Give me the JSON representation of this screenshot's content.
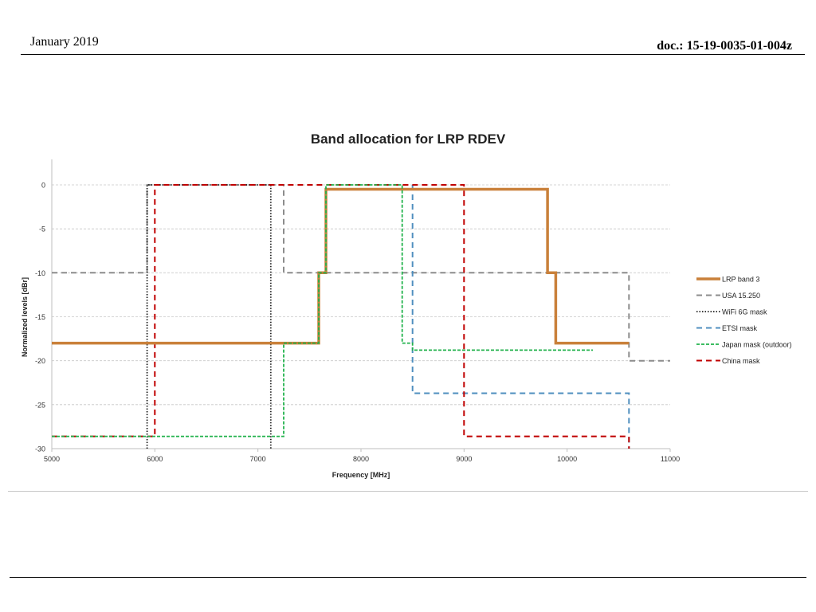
{
  "header": {
    "date": "January 2019",
    "doc": "doc.: 15-19-0035-01-004z"
  },
  "chart_data": {
    "type": "line",
    "title": "Band allocation for LRP RDEV",
    "xlabel": "Frequency [MHz]",
    "ylabel": "Normalized levels [dBr]",
    "xlim": [
      5000,
      11000
    ],
    "ylim": [
      -30,
      0
    ],
    "xticks": [
      5000,
      6000,
      7000,
      8000,
      9000,
      10000,
      11000
    ],
    "yticks": [
      0,
      -5,
      -10,
      -15,
      -20,
      -25,
      -30
    ],
    "grid": true,
    "legend_position": "right",
    "series": [
      {
        "name": "LRP band 3",
        "color": "#c9803a",
        "dash": "solid",
        "points": [
          [
            5000,
            -18
          ],
          [
            7590,
            -18
          ],
          [
            7590,
            -10
          ],
          [
            7660,
            -10
          ],
          [
            7660,
            -0.5
          ],
          [
            9810,
            -0.5
          ],
          [
            9810,
            -10
          ],
          [
            9890,
            -10
          ],
          [
            9890,
            -18
          ],
          [
            10600,
            -18
          ]
        ]
      },
      {
        "name": "USA 15.250",
        "color": "#8c8c8c",
        "dash": "long",
        "points": [
          [
            5000,
            -10
          ],
          [
            5925,
            -10
          ],
          [
            5925,
            0
          ],
          [
            7250,
            0
          ],
          [
            7250,
            -10
          ],
          [
            10600,
            -10
          ],
          [
            10600,
            -20
          ],
          [
            11000,
            -20
          ]
        ]
      },
      {
        "name": "WiFi 6G mask",
        "color": "#222222",
        "dash": "dot",
        "points": [
          [
            5925,
            -30
          ],
          [
            5925,
            0
          ],
          [
            7125,
            0
          ],
          [
            7125,
            -30
          ]
        ]
      },
      {
        "name": "ETSI mask",
        "color": "#4f8fbf",
        "dash": "long",
        "points": [
          [
            8500,
            0
          ],
          [
            8500,
            -23.7
          ],
          [
            10600,
            -23.7
          ],
          [
            10600,
            -30
          ]
        ]
      },
      {
        "name": "Japan mask (outdoor)",
        "color": "#22b24c",
        "dash": "short",
        "points": [
          [
            5000,
            -28.6
          ],
          [
            7250,
            -28.6
          ],
          [
            7250,
            -18
          ],
          [
            7590,
            -18
          ],
          [
            7590,
            -10
          ],
          [
            7660,
            -10
          ],
          [
            7660,
            0
          ],
          [
            8400,
            0
          ],
          [
            8400,
            -18
          ],
          [
            8500,
            -18
          ],
          [
            8500,
            -18.8
          ],
          [
            10250,
            -18.8
          ]
        ]
      },
      {
        "name": "China mask",
        "color": "#c00000",
        "dash": "long",
        "points": [
          [
            5000,
            -28.6
          ],
          [
            6000,
            -28.6
          ],
          [
            6000,
            0
          ],
          [
            9000,
            0
          ],
          [
            9000,
            -28.6
          ],
          [
            10600,
            -28.6
          ],
          [
            10600,
            -30
          ]
        ]
      }
    ]
  }
}
